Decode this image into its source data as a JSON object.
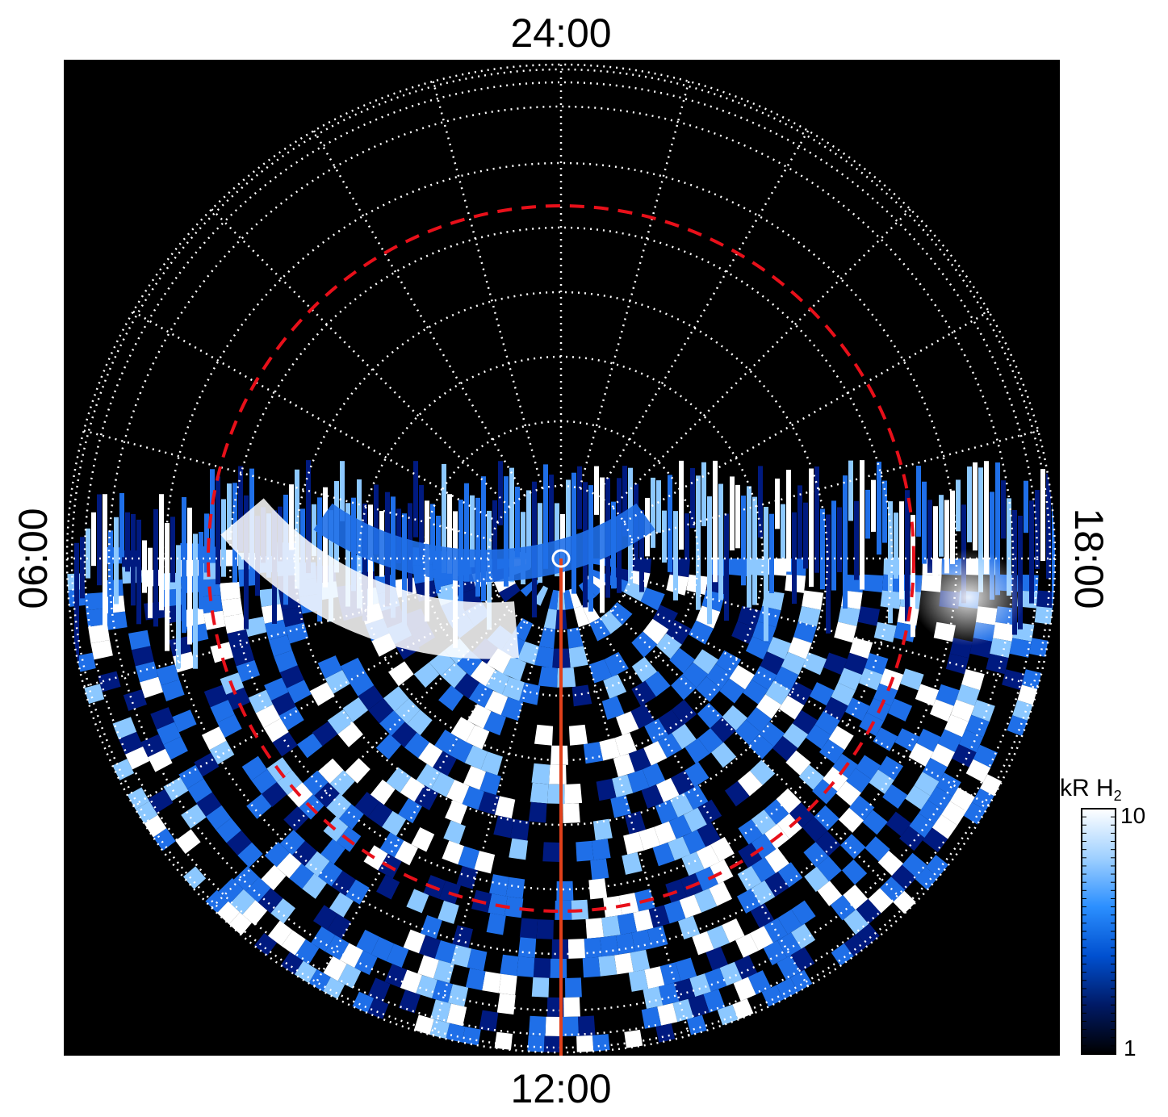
{
  "chart_data": {
    "type": "heatmap",
    "projection": "polar",
    "background": "#000000",
    "local_time_labels": {
      "top": "24:00",
      "bottom": "12:00",
      "left": "06:00",
      "right": "18:00"
    },
    "colorbar": {
      "title": "kR H",
      "title_subscript": "2",
      "min_label": "1",
      "max_label": "10",
      "range": [
        1,
        10
      ],
      "scale": "log",
      "colors": [
        "#000000",
        "#001a66",
        "#0050d0",
        "#2b8fff",
        "#9fd0ff",
        "#ffffff"
      ]
    },
    "grid": true,
    "grid_style": "dotted white",
    "reference_circle": {
      "style": "dashed",
      "color": "#e8101a"
    },
    "meridian_line": {
      "local_time": "12:00",
      "color": "#e0401a"
    },
    "emission_colors": {
      "low": "#001a80",
      "mid": "#1f6fe8",
      "high": "#8cc8ff",
      "peak": "#ffffff"
    }
  }
}
